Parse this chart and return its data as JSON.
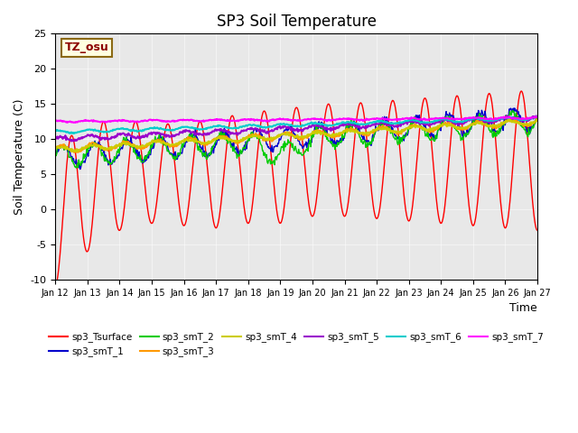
{
  "title": "SP3 Soil Temperature",
  "ylabel": "Soil Temperature (C)",
  "xlabel": "Time",
  "tz_label": "TZ_osu",
  "ylim": [
    -10,
    25
  ],
  "xlim": [
    0,
    360
  ],
  "background_color": "#e8e8e8",
  "series_colors": {
    "sp3_Tsurface": "#ff0000",
    "sp3_smT_1": "#0000cc",
    "sp3_smT_2": "#00cc00",
    "sp3_smT_3": "#ff9900",
    "sp3_smT_4": "#cccc00",
    "sp3_smT_5": "#9900cc",
    "sp3_smT_6": "#00cccc",
    "sp3_smT_7": "#ff00ff"
  },
  "x_tick_labels": [
    "Jan 12",
    "Jan 13",
    "Jan 14",
    "Jan 15",
    "Jan 16",
    "Jan 17",
    "Jan 18",
    "Jan 19",
    "Jan 20",
    "Jan 21",
    "Jan 22",
    "Jan 23",
    "Jan 24",
    "Jan 25",
    "Jan 26",
    "Jan 27"
  ]
}
